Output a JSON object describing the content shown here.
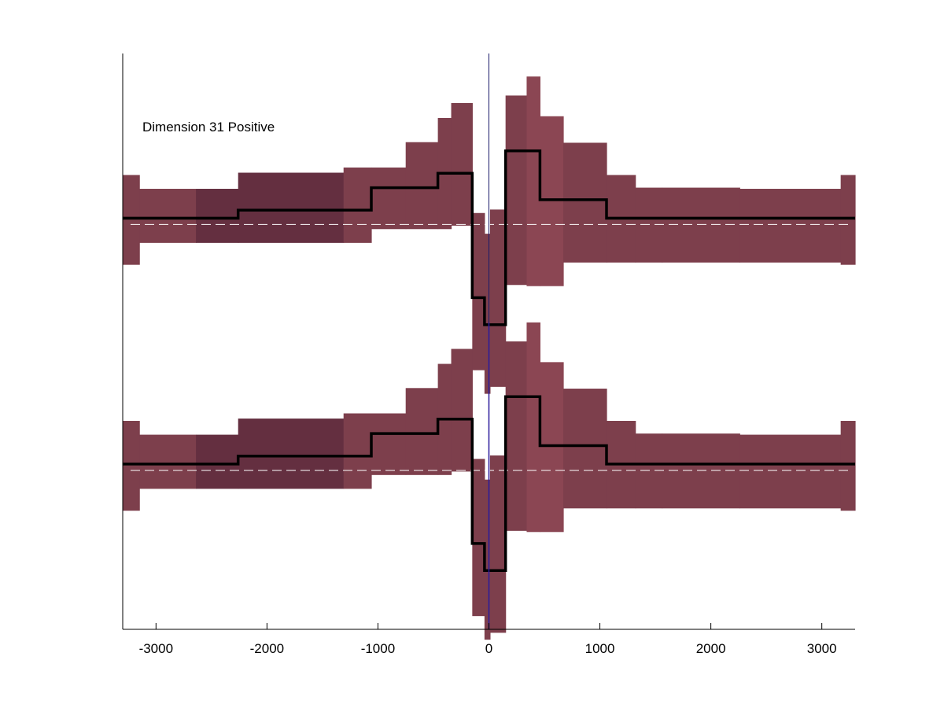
{
  "chart_data": {
    "type": "area",
    "title": "",
    "xlabel": "",
    "ylabel": "",
    "annotation": "Dimension 31 Positive",
    "xlim": [
      -3300,
      3300
    ],
    "ylim": [
      0,
      100
    ],
    "xticks": [
      -3000,
      -2000,
      -1000,
      0,
      1000,
      2000,
      3000
    ],
    "xtick_labels": [
      "-3000",
      "-2000",
      "-1000",
      "0",
      "1000",
      "2000",
      "3000"
    ],
    "yticks_visible": false,
    "grid": false,
    "legend": "none",
    "zero_line_x": 0,
    "colors": {
      "band_light": "#8b4653",
      "band_mid": "#7d3f4c",
      "band_dark": "#642f40",
      "median_line": "#000000",
      "baseline": "#ffffff",
      "zero_line": "#2b1b9c",
      "axis": "#000000"
    },
    "bins": [
      {
        "x0": -3300,
        "x1": -3150,
        "tone": "mid"
      },
      {
        "x0": -3150,
        "x1": -2640,
        "tone": "mid"
      },
      {
        "x0": -2640,
        "x1": -2260,
        "tone": "dark"
      },
      {
        "x0": -2260,
        "x1": -1310,
        "tone": "dark"
      },
      {
        "x0": -1310,
        "x1": -1060,
        "tone": "mid"
      },
      {
        "x0": -1060,
        "x1": -750,
        "tone": "mid"
      },
      {
        "x0": -750,
        "x1": -460,
        "tone": "mid"
      },
      {
        "x0": -460,
        "x1": -340,
        "tone": "mid"
      },
      {
        "x0": -340,
        "x1": -150,
        "tone": "mid"
      },
      {
        "x0": -150,
        "x1": -40,
        "tone": "mid"
      },
      {
        "x0": -40,
        "x1": 10,
        "tone": "mid"
      },
      {
        "x0": 10,
        "x1": 150,
        "tone": "mid"
      },
      {
        "x0": 150,
        "x1": 340,
        "tone": "mid"
      },
      {
        "x0": 340,
        "x1": 460,
        "tone": "light"
      },
      {
        "x0": 460,
        "x1": 670,
        "tone": "light"
      },
      {
        "x0": 670,
        "x1": 1060,
        "tone": "mid"
      },
      {
        "x0": 1060,
        "x1": 1320,
        "tone": "mid"
      },
      {
        "x0": 1320,
        "x1": 1560,
        "tone": "mid"
      },
      {
        "x0": 1560,
        "x1": 2260,
        "tone": "mid"
      },
      {
        "x0": 2260,
        "x1": 3170,
        "tone": "mid"
      },
      {
        "x0": 3170,
        "x1": 3300,
        "tone": "mid"
      }
    ],
    "series": [
      {
        "lower": [
          63.3,
          67.1,
          67.1,
          67.1,
          67.1,
          69.5,
          69.5,
          69.5,
          70.1,
          45.0,
          40.9,
          42.1,
          59.8,
          59.6,
          59.6,
          63.7,
          63.7,
          63.7,
          63.7,
          63.7,
          63.3
        ],
        "median": [
          71.4,
          71.4,
          71.4,
          72.8,
          72.8,
          76.7,
          76.7,
          79.2,
          79.2,
          57.6,
          52.9,
          52.9,
          83.1,
          83.1,
          74.6,
          74.6,
          71.4,
          71.4,
          71.4,
          71.4,
          71.4
        ],
        "upper": [
          78.9,
          76.5,
          76.5,
          79.3,
          80.2,
          80.2,
          84.6,
          88.8,
          91.4,
          72.3,
          68.7,
          72.9,
          92.7,
          96.0,
          89.1,
          84.5,
          78.9,
          76.7,
          76.7,
          76.5,
          78.9
        ]
      },
      {
        "lower": [
          20.6,
          24.4,
          24.4,
          24.4,
          24.4,
          26.8,
          26.8,
          26.8,
          27.4,
          2.3,
          -1.8,
          -0.6,
          17.1,
          16.9,
          16.9,
          21.0,
          21.0,
          21.0,
          21.0,
          21.0,
          20.6
        ],
        "median": [
          28.7,
          28.7,
          28.7,
          30.1,
          30.1,
          34.0,
          34.0,
          36.5,
          36.5,
          14.9,
          10.2,
          10.2,
          40.4,
          40.4,
          31.9,
          31.9,
          28.7,
          28.7,
          28.7,
          28.7,
          28.7
        ],
        "upper": [
          36.2,
          33.8,
          33.8,
          36.6,
          37.5,
          37.5,
          41.9,
          46.1,
          48.7,
          29.6,
          26.0,
          30.2,
          50.0,
          53.3,
          46.4,
          41.8,
          36.2,
          34.0,
          34.0,
          33.8,
          36.2
        ]
      }
    ],
    "baselines": [
      70.3,
      27.6
    ]
  }
}
